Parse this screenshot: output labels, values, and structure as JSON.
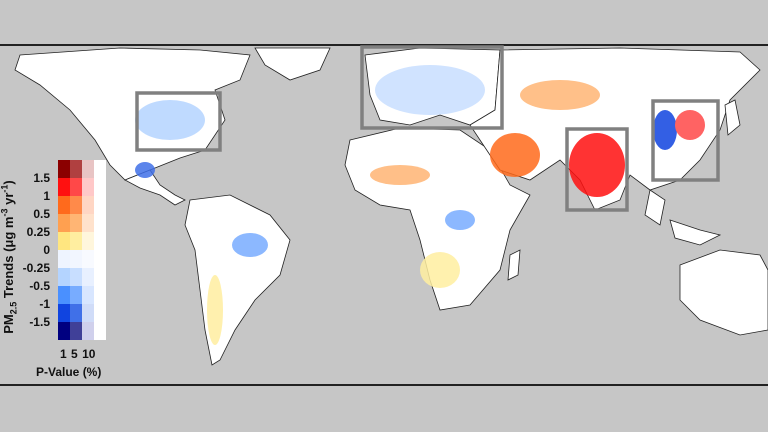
{
  "legend": {
    "title": "PM2.5 Trends (μg m-3 yr-1)",
    "title_parts": {
      "pm": "PM",
      "sub": "2.5",
      "trends": " Trends (",
      "mu": "μg m",
      "exp1": "-3",
      "yr": " yr",
      "exp2": "-1",
      "close": ")"
    },
    "ticks": [
      "1.5",
      "1",
      "0.5",
      "0.25",
      "0",
      "-0.25",
      "-0.5",
      "-1",
      "-1.5"
    ],
    "p_values": [
      "1",
      "5",
      "10"
    ],
    "p_value_label": "P-Value (%)",
    "colors": [
      [
        "#8b0000",
        "#b04040",
        "#e8c4c4",
        "#ffffff"
      ],
      [
        "#ff1010",
        "#ff4848",
        "#ffc8c8",
        "#ffffff"
      ],
      [
        "#ff6a1c",
        "#ff8a4a",
        "#ffd6c4",
        "#ffffff"
      ],
      [
        "#ffa050",
        "#ffb574",
        "#ffe2cc",
        "#ffffff"
      ],
      [
        "#ffe680",
        "#ffeea0",
        "#fff6dc",
        "#ffffff"
      ],
      [
        "#eef4ff",
        "#f2f6ff",
        "#f8faff",
        "#ffffff"
      ],
      [
        "#b4d4ff",
        "#c8deff",
        "#e8f0ff",
        "#ffffff"
      ],
      [
        "#4a90ff",
        "#78acff",
        "#d8e6ff",
        "#ffffff"
      ],
      [
        "#1044e0",
        "#4070e8",
        "#d0dcf8",
        "#ffffff"
      ],
      [
        "#000080",
        "#404098",
        "#d0d0ec",
        "#ffffff"
      ]
    ]
  },
  "regions_highlighted": [
    "Eastern United States",
    "Europe",
    "India",
    "Eastern China"
  ],
  "colors": {
    "background": "#c6c6c6",
    "land": "#ffffff",
    "highlight_box": "#808080"
  }
}
